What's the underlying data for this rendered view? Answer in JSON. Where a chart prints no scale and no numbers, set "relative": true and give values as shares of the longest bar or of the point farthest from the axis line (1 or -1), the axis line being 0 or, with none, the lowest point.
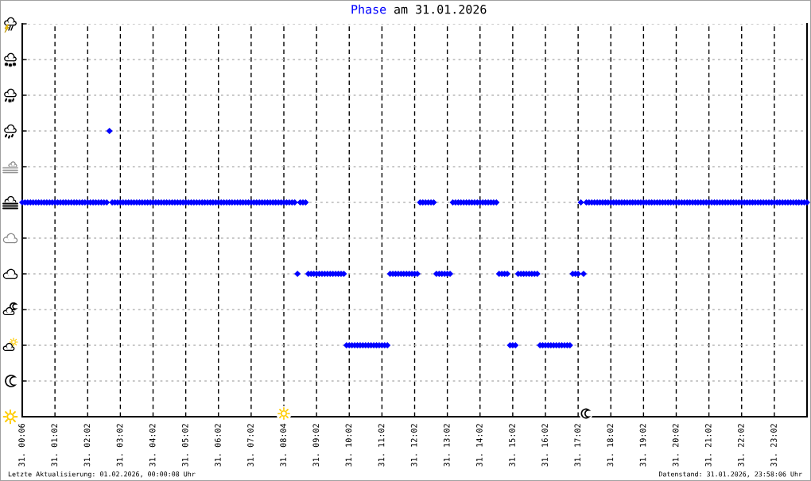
{
  "chart_data": {
    "type": "scatter",
    "title": "Phase am 31.01.2026",
    "relative": true,
    "tick_labels": "x",
    "marker": "diamond",
    "grid": true,
    "color": "#0000ff",
    "categories": [
      "31. 00:06",
      null,
      null,
      null,
      null,
      null,
      null,
      null,
      null,
      null,
      null,
      null,
      "31. 01:02",
      null,
      null,
      null,
      null,
      null,
      null,
      null,
      null,
      null,
      null,
      null,
      "31. 02:02",
      null,
      null,
      null,
      null,
      null,
      null,
      null,
      null,
      null,
      null,
      null,
      "31. 03:02",
      null,
      null,
      null,
      null,
      null,
      null,
      null,
      null,
      null,
      null,
      null,
      "31. 04:02",
      null,
      null,
      null,
      null,
      null,
      null,
      null,
      null,
      null,
      null,
      null,
      "31. 05:02",
      null,
      null,
      null,
      null,
      null,
      null,
      null,
      null,
      null,
      null,
      null,
      "31. 06:02",
      null,
      null,
      null,
      null,
      null,
      null,
      null,
      null,
      null,
      null,
      null,
      "31. 07:02",
      null,
      null,
      null,
      null,
      null,
      null,
      null,
      null,
      null,
      null,
      null,
      "31. 08:04",
      null,
      null,
      null,
      null,
      null,
      null,
      null,
      null,
      null,
      null,
      null,
      "31. 09:02",
      null,
      null,
      null,
      null,
      null,
      null,
      null,
      null,
      null,
      null,
      null,
      "31. 10:02",
      null,
      null,
      null,
      null,
      null,
      null,
      null,
      null,
      null,
      null,
      null,
      "31. 11:02",
      null,
      null,
      null,
      null,
      null,
      null,
      null,
      null,
      null,
      null,
      null,
      "31. 12:02",
      null,
      null,
      null,
      null,
      null,
      null,
      null,
      null,
      null,
      null,
      null,
      "31. 13:02",
      null,
      null,
      null,
      null,
      null,
      null,
      null,
      null,
      null,
      null,
      null,
      "31. 14:02",
      null,
      null,
      null,
      null,
      null,
      null,
      null,
      null,
      null,
      null,
      null,
      "31. 15:02",
      null,
      null,
      null,
      null,
      null,
      null,
      null,
      null,
      null,
      null,
      null,
      "31. 16:02",
      null,
      null,
      null,
      null,
      null,
      null,
      null,
      null,
      null,
      null,
      null,
      "31. 17:02",
      null,
      null,
      null,
      null,
      null,
      null,
      null,
      null,
      null,
      null,
      null,
      "31. 18:02",
      null,
      null,
      null,
      null,
      null,
      null,
      null,
      null,
      null,
      null,
      null,
      "31. 19:02",
      null,
      null,
      null,
      null,
      null,
      null,
      null,
      null,
      null,
      null,
      null,
      "31. 20:02",
      null,
      null,
      null,
      null,
      null,
      null,
      null,
      null,
      null,
      null,
      null,
      "31. 21:02",
      null,
      null,
      null,
      null,
      null,
      null,
      null,
      null,
      null,
      null,
      null,
      "31. 22:02",
      null,
      null,
      null,
      null,
      null,
      null,
      null,
      null,
      null,
      null,
      null,
      "31. 23:02",
      null,
      null,
      null,
      null,
      null,
      null,
      null,
      null,
      null,
      null,
      null,
      null
    ],
    "values": [
      0.75,
      0.75,
      0.75,
      0.75,
      0.75,
      0.75,
      0.75,
      0.75,
      0.75,
      0.75,
      0.75,
      0.75,
      0.75,
      0.75,
      0.75,
      0.75,
      0.75,
      0.75,
      0.75,
      0.75,
      0.75,
      0.75,
      0.75,
      0.75,
      0.75,
      0.75,
      0.75,
      0.75,
      0.75,
      0.75,
      0.75,
      0.75,
      1,
      0.75,
      0.75,
      0.75,
      0.75,
      0.75,
      0.75,
      0.75,
      0.75,
      0.75,
      0.75,
      0.75,
      0.75,
      0.75,
      0.75,
      0.75,
      0.75,
      0.75,
      0.75,
      0.75,
      0.75,
      0.75,
      0.75,
      0.75,
      0.75,
      0.75,
      0.75,
      0.75,
      0.75,
      0.75,
      0.75,
      0.75,
      0.75,
      0.75,
      0.75,
      0.75,
      0.75,
      0.75,
      0.75,
      0.75,
      0.75,
      0.75,
      0.75,
      0.75,
      0.75,
      0.75,
      0.75,
      0.75,
      0.75,
      0.75,
      0.75,
      0.75,
      0.75,
      0.75,
      0.75,
      0.75,
      0.75,
      0.75,
      0.75,
      0.75,
      0.75,
      0.75,
      0.75,
      0.75,
      0.75,
      0.75,
      0.75,
      0.75,
      0.75,
      0.5,
      0.75,
      0.75,
      0.75,
      0.5,
      0.5,
      0.5,
      0.5,
      0.5,
      0.5,
      0.5,
      0.5,
      0.5,
      0.5,
      0.5,
      0.5,
      0.5,
      0.5,
      0.25,
      0.25,
      0.25,
      0.25,
      0.25,
      0.25,
      0.25,
      0.25,
      0.25,
      0.25,
      0.25,
      0.25,
      0.25,
      0.25,
      0.25,
      0.25,
      0.5,
      0.5,
      0.5,
      0.5,
      0.5,
      0.5,
      0.5,
      0.5,
      0.5,
      0.5,
      0.5,
      0.75,
      0.75,
      0.75,
      0.75,
      0.75,
      0.75,
      0.5,
      0.5,
      0.5,
      0.5,
      0.5,
      0.5,
      0.75,
      0.75,
      0.75,
      0.75,
      0.75,
      0.75,
      0.75,
      0.75,
      0.75,
      0.75,
      0.75,
      0.75,
      0.75,
      0.75,
      0.75,
      0.75,
      0.75,
      0.5,
      0.5,
      0.5,
      0.5,
      0.25,
      0.25,
      0.25,
      0.5,
      0.5,
      0.5,
      0.5,
      0.5,
      0.5,
      0.5,
      0.5,
      0.25,
      0.25,
      0.25,
      0.25,
      0.25,
      0.25,
      0.25,
      0.25,
      0.25,
      0.25,
      0.25,
      0.25,
      0.5,
      0.5,
      0.5,
      0.75,
      0.5,
      0.75,
      0.75,
      0.75,
      0.75,
      0.75,
      0.75,
      0.75,
      0.75,
      0.75,
      0.75,
      0.75,
      0.75,
      0.75,
      0.75,
      0.75,
      0.75,
      0.75,
      0.75,
      0.75,
      0.75,
      0.75,
      0.75,
      0.75,
      0.75,
      0.75,
      0.75,
      0.75,
      0.75,
      0.75,
      0.75,
      0.75,
      0.75,
      0.75,
      0.75,
      0.75,
      0.75,
      0.75,
      0.75,
      0.75,
      0.75,
      0.75,
      0.75,
      0.75,
      0.75,
      0.75,
      0.75,
      0.75,
      0.75,
      0.75,
      0.75,
      0.75,
      0.75,
      0.75,
      0.75,
      0.75,
      0.75,
      0.75,
      0.75,
      0.75,
      0.75,
      0.75,
      0.75,
      0.75,
      0.75,
      0.75,
      0.75,
      0.75,
      0.75,
      0.75,
      0.75,
      0.75,
      0.75,
      0.75,
      0.75,
      0.75,
      0.75,
      0.75,
      0.75,
      0.75,
      0.75,
      0.75,
      0.75
    ],
    "annotations": [
      "Letzte Aktualisierung: 01.02.2026, 00:00:08 Uhr",
      "Datenstand: 31.01.2026, 23:58:06 Uhr"
    ]
  }
}
